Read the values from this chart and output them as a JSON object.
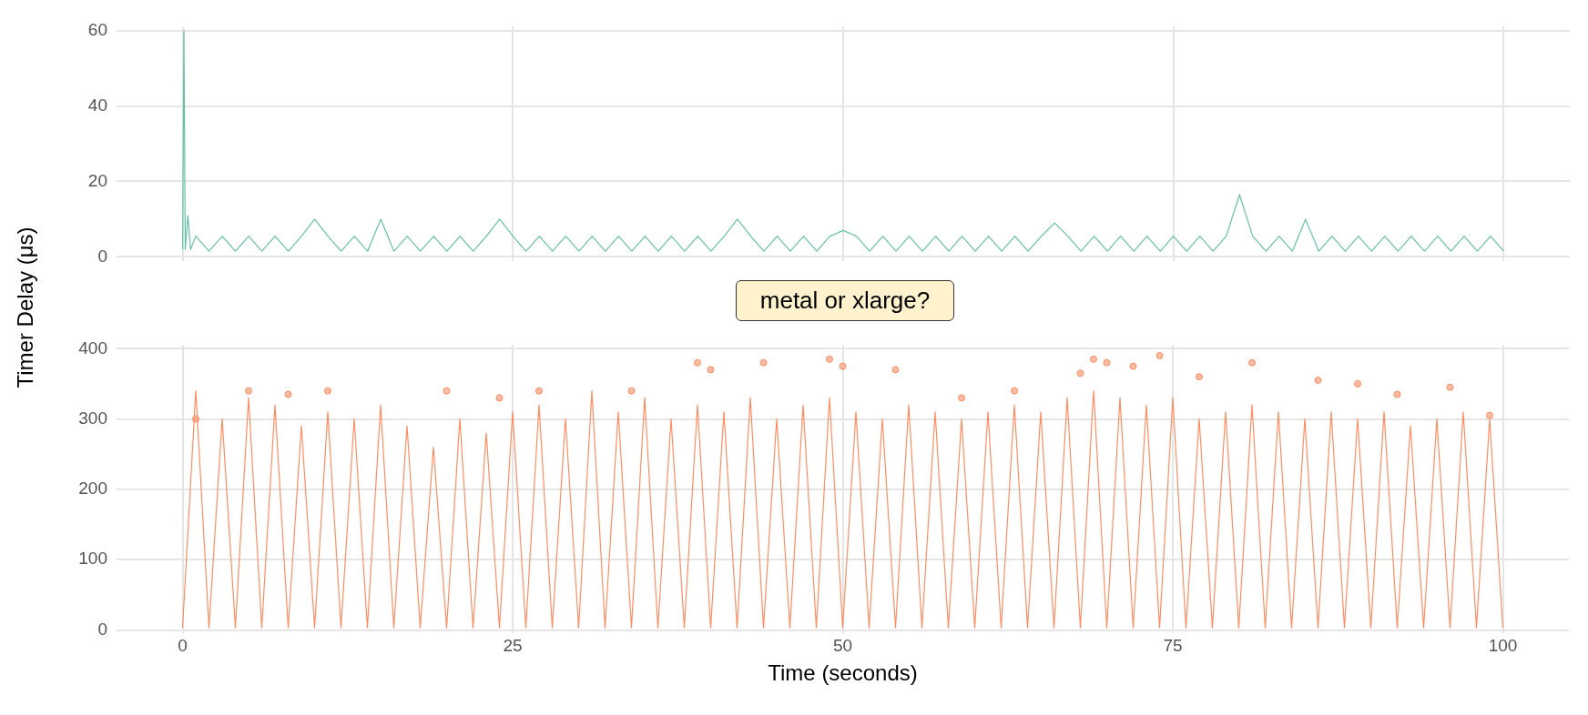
{
  "chart_data": [
    {
      "type": "line",
      "ylabel": "Timer Delay (μs)",
      "tick_labels": "y",
      "grid": true,
      "legend": false,
      "xlim": [
        -5,
        105
      ],
      "xticks": [
        0,
        25,
        50,
        75,
        100
      ],
      "ylim": [
        -1,
        61
      ],
      "yticks": [
        0,
        20,
        40,
        60
      ],
      "series": [
        {
          "color": "#66c2a5",
          "x": [
            0,
            0.1,
            0.2,
            0.4,
            0.6,
            1,
            2,
            3,
            4,
            5,
            6,
            7,
            8,
            9,
            10,
            11,
            12,
            13,
            14,
            15,
            16,
            17,
            18,
            19,
            20,
            21,
            22,
            23,
            24,
            25,
            26,
            27,
            28,
            29,
            30,
            31,
            32,
            33,
            34,
            35,
            36,
            37,
            38,
            39,
            40,
            41,
            42,
            43,
            44,
            45,
            46,
            47,
            48,
            49,
            50,
            51,
            52,
            53,
            54,
            55,
            56,
            57,
            58,
            59,
            60,
            61,
            62,
            63,
            64,
            65,
            66,
            67,
            68,
            69,
            70,
            71,
            72,
            73,
            74,
            75,
            76,
            77,
            78,
            79,
            80,
            81,
            82,
            83,
            84,
            85,
            86,
            87,
            88,
            89,
            90,
            91,
            92,
            93,
            94,
            95,
            96,
            97,
            98,
            99,
            100
          ],
          "values": [
            2,
            60,
            2,
            11,
            2,
            5.5,
            1.5,
            5.5,
            1.5,
            5.5,
            1.5,
            5.5,
            1.5,
            5.5,
            10,
            5.5,
            1.5,
            5.5,
            1.5,
            10,
            1.5,
            5.5,
            1.5,
            5.5,
            1.5,
            5.5,
            1.5,
            5.5,
            10,
            5.5,
            1.5,
            5.5,
            1.5,
            5.5,
            1.5,
            5.5,
            1.5,
            5.5,
            1.5,
            5.5,
            1.5,
            5.5,
            1.5,
            5.5,
            1.5,
            5.5,
            10,
            5.5,
            1.5,
            5.5,
            1.5,
            5.5,
            1.5,
            5.5,
            7,
            5.5,
            1.5,
            5.5,
            1.5,
            5.5,
            1.5,
            5.5,
            1.5,
            5.5,
            1.5,
            5.5,
            1.5,
            5.5,
            1.5,
            5.5,
            9,
            5.5,
            1.5,
            5.5,
            1.5,
            5.5,
            1.5,
            5.5,
            1.5,
            5.5,
            1.5,
            5.5,
            1.5,
            5.5,
            16.5,
            5.5,
            1.5,
            5.5,
            1.5,
            10,
            1.5,
            5.5,
            1.5,
            5.5,
            1.5,
            5.5,
            1.5,
            5.5,
            1.5,
            5.5,
            1.5,
            5.5,
            1.5,
            5.5,
            1.5
          ]
        }
      ]
    },
    {
      "type": "line",
      "title": "metal or xlarge?",
      "xlabel": "Time (seconds)",
      "grid": true,
      "legend": false,
      "xlim": [
        -5,
        105
      ],
      "xticks": [
        0,
        25,
        50,
        75,
        100
      ],
      "ylim": [
        -5,
        405
      ],
      "yticks": [
        0,
        100,
        200,
        300,
        400
      ],
      "series": [
        {
          "color": "#fc8d62",
          "x": [
            0,
            1,
            2,
            3,
            4,
            5,
            6,
            7,
            8,
            9,
            10,
            11,
            12,
            13,
            14,
            15,
            16,
            17,
            18,
            19,
            20,
            21,
            22,
            23,
            24,
            25,
            26,
            27,
            28,
            29,
            30,
            31,
            32,
            33,
            34,
            35,
            36,
            37,
            38,
            39,
            40,
            41,
            42,
            43,
            44,
            45,
            46,
            47,
            48,
            49,
            50,
            51,
            52,
            53,
            54,
            55,
            56,
            57,
            58,
            59,
            60,
            61,
            62,
            63,
            64,
            65,
            66,
            67,
            68,
            69,
            70,
            71,
            72,
            73,
            74,
            75,
            76,
            77,
            78,
            79,
            80,
            81,
            82,
            83,
            84,
            85,
            86,
            87,
            88,
            89,
            90,
            91,
            92,
            93,
            94,
            95,
            96,
            97,
            98,
            99,
            100
          ],
          "values": [
            3,
            340,
            3,
            300,
            3,
            330,
            3,
            320,
            3,
            290,
            3,
            310,
            3,
            300,
            3,
            320,
            3,
            290,
            3,
            260,
            3,
            300,
            3,
            280,
            3,
            310,
            3,
            320,
            3,
            300,
            3,
            340,
            3,
            310,
            3,
            330,
            3,
            300,
            3,
            320,
            3,
            310,
            3,
            330,
            3,
            300,
            3,
            320,
            3,
            330,
            3,
            310,
            3,
            300,
            3,
            320,
            3,
            310,
            3,
            300,
            3,
            310,
            3,
            320,
            3,
            310,
            3,
            330,
            3,
            340,
            3,
            330,
            3,
            320,
            3,
            330,
            3,
            300,
            3,
            310,
            3,
            320,
            3,
            310,
            3,
            300,
            3,
            310,
            3,
            300,
            3,
            310,
            3,
            290,
            3,
            300,
            3,
            310,
            3,
            300,
            3
          ]
        },
        {
          "type": "scatter",
          "color": "#fc8d62",
          "marker": "circle",
          "x": [
            1,
            5,
            8,
            11,
            20,
            24,
            27,
            34,
            39,
            40,
            44,
            49,
            50,
            54,
            59,
            63,
            68,
            69,
            70,
            72,
            74,
            77,
            81,
            86,
            89,
            92,
            96,
            99
          ],
          "values": [
            300,
            340,
            335,
            340,
            340,
            330,
            340,
            340,
            380,
            370,
            380,
            385,
            375,
            370,
            330,
            340,
            365,
            385,
            380,
            375,
            390,
            360,
            380,
            355,
            350,
            335,
            345,
            305
          ]
        }
      ]
    }
  ]
}
